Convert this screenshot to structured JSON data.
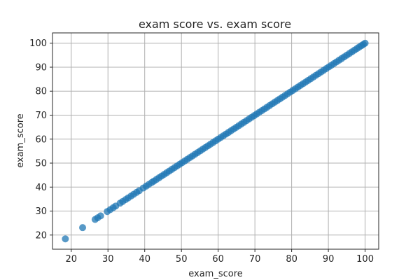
{
  "chart_data": {
    "type": "scatter",
    "title": "exam score vs. exam score",
    "xlabel": "exam_score",
    "ylabel": "exam_score",
    "xlim": [
      14.9,
      103.7
    ],
    "ylim": [
      14.1,
      104.3
    ],
    "xticks": [
      20,
      30,
      40,
      50,
      60,
      70,
      80,
      90,
      100
    ],
    "yticks": [
      20,
      30,
      40,
      50,
      60,
      70,
      80,
      90,
      100
    ],
    "grid": true,
    "color": "#1f77b4",
    "points": [
      [
        18.4,
        18.4
      ],
      [
        23.1,
        23.1
      ],
      [
        26.5,
        26.5
      ],
      [
        27.2,
        27.2
      ],
      [
        28.0,
        28.0
      ],
      [
        29.8,
        29.8
      ],
      [
        30.6,
        30.6
      ],
      [
        31.4,
        31.4
      ],
      [
        32.1,
        32.1
      ],
      [
        33.3,
        33.3
      ],
      [
        34.0,
        34.0
      ],
      [
        34.8,
        34.8
      ],
      [
        35.5,
        35.5
      ],
      [
        36.3,
        36.3
      ],
      [
        37.0,
        37.0
      ],
      [
        37.8,
        37.8
      ],
      [
        38.5,
        38.5
      ],
      [
        39.6,
        39.6
      ],
      [
        40.4,
        40.4
      ],
      [
        41.1,
        41.1
      ],
      [
        41.9,
        41.9
      ],
      [
        42.5,
        42.5
      ],
      [
        43.2,
        43.2
      ],
      [
        43.9,
        43.9
      ],
      [
        44.6,
        44.6
      ],
      [
        45.3,
        45.3
      ],
      [
        46.0,
        46.0
      ],
      [
        46.7,
        46.7
      ],
      [
        47.4,
        47.4
      ],
      [
        48.1,
        48.1
      ],
      [
        48.8,
        48.8
      ],
      [
        49.5,
        49.5
      ],
      [
        50.2,
        50.2
      ],
      [
        50.9,
        50.9
      ],
      [
        51.6,
        51.6
      ],
      [
        52.3,
        52.3
      ],
      [
        53.0,
        53.0
      ],
      [
        53.7,
        53.7
      ],
      [
        54.4,
        54.4
      ],
      [
        55.1,
        55.1
      ],
      [
        55.8,
        55.8
      ],
      [
        56.5,
        56.5
      ],
      [
        57.2,
        57.2
      ],
      [
        57.9,
        57.9
      ],
      [
        58.6,
        58.6
      ],
      [
        59.3,
        59.3
      ],
      [
        60.0,
        60.0
      ],
      [
        60.7,
        60.7
      ],
      [
        61.4,
        61.4
      ],
      [
        62.1,
        62.1
      ],
      [
        62.8,
        62.8
      ],
      [
        63.5,
        63.5
      ],
      [
        64.2,
        64.2
      ],
      [
        64.9,
        64.9
      ],
      [
        65.6,
        65.6
      ],
      [
        66.3,
        66.3
      ],
      [
        67.0,
        67.0
      ],
      [
        67.7,
        67.7
      ],
      [
        68.4,
        68.4
      ],
      [
        69.1,
        69.1
      ],
      [
        69.8,
        69.8
      ],
      [
        70.5,
        70.5
      ],
      [
        71.2,
        71.2
      ],
      [
        71.9,
        71.9
      ],
      [
        72.6,
        72.6
      ],
      [
        73.3,
        73.3
      ],
      [
        74.0,
        74.0
      ],
      [
        74.7,
        74.7
      ],
      [
        75.4,
        75.4
      ],
      [
        76.1,
        76.1
      ],
      [
        76.8,
        76.8
      ],
      [
        77.5,
        77.5
      ],
      [
        78.2,
        78.2
      ],
      [
        78.9,
        78.9
      ],
      [
        79.6,
        79.6
      ],
      [
        80.3,
        80.3
      ],
      [
        81.0,
        81.0
      ],
      [
        81.7,
        81.7
      ],
      [
        82.4,
        82.4
      ],
      [
        83.1,
        83.1
      ],
      [
        83.8,
        83.8
      ],
      [
        84.5,
        84.5
      ],
      [
        85.2,
        85.2
      ],
      [
        85.9,
        85.9
      ],
      [
        86.6,
        86.6
      ],
      [
        87.3,
        87.3
      ],
      [
        88.0,
        88.0
      ],
      [
        88.7,
        88.7
      ],
      [
        89.4,
        89.4
      ],
      [
        90.1,
        90.1
      ],
      [
        90.8,
        90.8
      ],
      [
        91.5,
        91.5
      ],
      [
        92.2,
        92.2
      ],
      [
        92.9,
        92.9
      ],
      [
        93.6,
        93.6
      ],
      [
        94.3,
        94.3
      ],
      [
        95.0,
        95.0
      ],
      [
        95.7,
        95.7
      ],
      [
        96.4,
        96.4
      ],
      [
        97.1,
        97.1
      ],
      [
        97.8,
        97.8
      ],
      [
        98.4,
        98.4
      ],
      [
        99.0,
        99.0
      ],
      [
        99.5,
        99.5
      ],
      [
        100.0,
        100.0
      ]
    ]
  }
}
